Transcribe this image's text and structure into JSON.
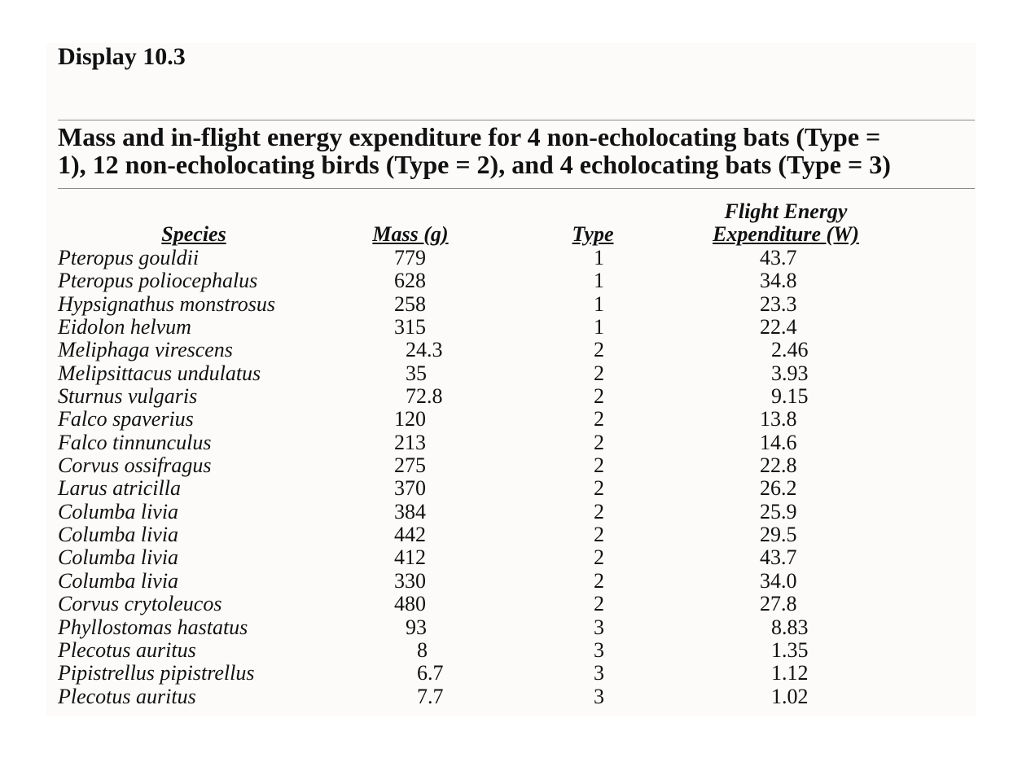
{
  "display_label": "Display 10.3",
  "caption_line1": "Mass and in-flight energy expenditure for 4 non-echolocating bats (Type =",
  "caption_line2": "1), 12 non-echolocating birds (Type = 2), and 4 echolocating bats (Type = 3)",
  "columns": {
    "species": "Species",
    "mass": "Mass (g)",
    "type": "Type",
    "energy_line1": "Flight Energy",
    "energy_line2": "Expenditure (W)"
  },
  "rows": [
    {
      "species": "Pteropus gouldii",
      "mass": "779",
      "type": "1",
      "energy": "43.7"
    },
    {
      "species": "Pteropus poliocephalus",
      "mass": "628",
      "type": "1",
      "energy": "34.8"
    },
    {
      "species": "Hypsignathus monstrosus",
      "mass": "258",
      "type": "1",
      "energy": "23.3"
    },
    {
      "species": "Eidolon helvum",
      "mass": "315",
      "type": "1",
      "energy": "22.4"
    },
    {
      "species": "Meliphaga virescens",
      "mass": "24.3",
      "type": "2",
      "energy": "2.46"
    },
    {
      "species": "Melipsittacus undulatus",
      "mass": "35",
      "type": "2",
      "energy": "3.93"
    },
    {
      "species": "Sturnus vulgaris",
      "mass": "72.8",
      "type": "2",
      "energy": "9.15"
    },
    {
      "species": "Falco spaverius",
      "mass": "120",
      "type": "2",
      "energy": "13.8"
    },
    {
      "species": "Falco tinnunculus",
      "mass": "213",
      "type": "2",
      "energy": "14.6"
    },
    {
      "species": "Corvus ossifragus",
      "mass": "275",
      "type": "2",
      "energy": "22.8"
    },
    {
      "species": "Larus atricilla",
      "mass": "370",
      "type": "2",
      "energy": "26.2"
    },
    {
      "species": "Columba livia",
      "mass": "384",
      "type": "2",
      "energy": "25.9"
    },
    {
      "species": "Columba livia",
      "mass": "442",
      "type": "2",
      "energy": "29.5"
    },
    {
      "species": "Columba livia",
      "mass": "412",
      "type": "2",
      "energy": "43.7"
    },
    {
      "species": "Columba livia",
      "mass": "330",
      "type": "2",
      "energy": "34.0"
    },
    {
      "species": "Corvus crytoleucos",
      "mass": "480",
      "type": "2",
      "energy": "27.8"
    },
    {
      "species": "Phyllostomas hastatus",
      "mass": "93",
      "type": "3",
      "energy": "8.83"
    },
    {
      "species": "Plecotus auritus",
      "mass": "8",
      "type": "3",
      "energy": "1.35"
    },
    {
      "species": "Pipistrellus pipistrellus",
      "mass": "6.7",
      "type": "3",
      "energy": "1.12"
    },
    {
      "species": "Plecotus auritus",
      "mass": "7.7",
      "type": "3",
      "energy": "1.02"
    }
  ]
}
